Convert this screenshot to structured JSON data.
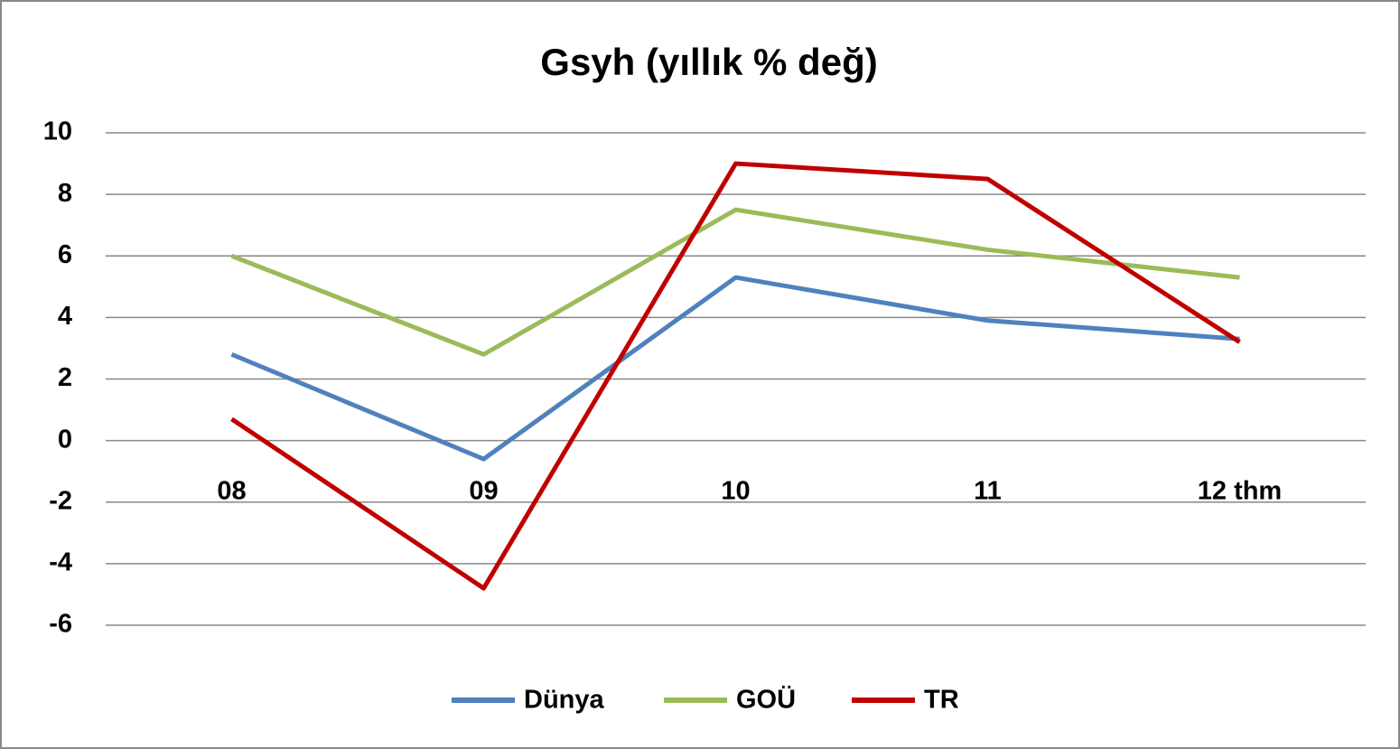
{
  "chart_data": {
    "type": "line",
    "title": "Gsyh (yıllık % değ)",
    "categories": [
      "08",
      "09",
      "10",
      "11",
      "12 thm"
    ],
    "series": [
      {
        "name": "Dünya",
        "color": "#4f81bd",
        "values": [
          2.8,
          -0.6,
          5.3,
          3.9,
          3.3
        ]
      },
      {
        "name": "GOÜ",
        "color": "#9bbb59",
        "values": [
          6.0,
          2.8,
          7.5,
          6.2,
          5.3
        ]
      },
      {
        "name": "TR",
        "color": "#c00000",
        "values": [
          0.7,
          -4.8,
          9.0,
          8.5,
          3.2
        ]
      }
    ],
    "ylim": [
      -6,
      10
    ],
    "yticks": [
      -6,
      -4,
      -2,
      0,
      2,
      4,
      6,
      8,
      10
    ],
    "grid": true,
    "legend": "bottom"
  }
}
